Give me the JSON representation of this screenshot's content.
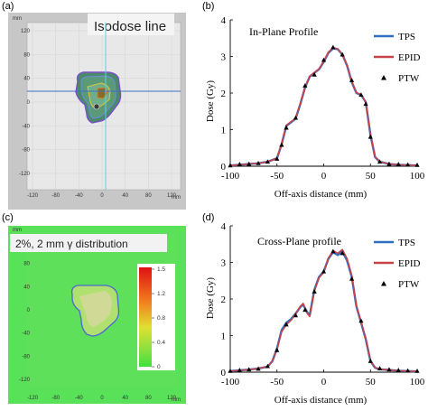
{
  "panels": {
    "a": {
      "letter": "(a)",
      "overlay_label": "Isodose line",
      "unit": "mm",
      "y_ticks": [
        "120",
        "80",
        "40",
        "0",
        "-40",
        "-80",
        "-120"
      ],
      "x_ticks": [
        "-120",
        "-80",
        "-40",
        "0",
        "40",
        "80",
        "120"
      ],
      "colors": {
        "background": "#c7c7c7",
        "plot": "#e8e8e8",
        "grid": "#cfcfcf",
        "crosshair_h": "#3e6fc0",
        "crosshair_v": "#5bd0e0"
      }
    },
    "c": {
      "letter": "(c)",
      "overlay_label": "2%, 2 mm γ distribution",
      "unit": "mm",
      "y_ticks": [
        "120",
        "80",
        "40",
        "0",
        "-40",
        "-80",
        "-120"
      ],
      "x_ticks": [
        "-120",
        "-80",
        "-40",
        "0",
        "40",
        "80",
        "120"
      ],
      "colorbar_ticks": [
        "1.5",
        "1.2",
        "0.8",
        "0.4",
        "0"
      ],
      "colors": {
        "background": "#59e159",
        "plot": "#5fe05a"
      }
    }
  },
  "chart_data": [
    {
      "panel": "b",
      "letter": "(b)",
      "type": "line",
      "title": "In-Plane Profile",
      "xlabel": "Off-axis distance (mm)",
      "ylabel": "Dose (Gy)",
      "xlim": [
        -100,
        100
      ],
      "ylim": [
        0,
        4
      ],
      "x_ticks": [
        "-100",
        "-50",
        "0",
        "50",
        "100"
      ],
      "y_ticks": [
        "0",
        "1",
        "2",
        "3",
        "4"
      ],
      "legend_position": "right",
      "series": [
        {
          "name": "TPS",
          "color": "#2e6fc1",
          "style": "line",
          "x": [
            -100,
            -90,
            -80,
            -70,
            -60,
            -50,
            -45,
            -40,
            -35,
            -30,
            -25,
            -20,
            -15,
            -10,
            -5,
            0,
            5,
            10,
            15,
            20,
            25,
            30,
            35,
            40,
            45,
            50,
            55,
            60,
            70,
            80,
            90,
            100
          ],
          "y": [
            0.02,
            0.04,
            0.06,
            0.08,
            0.12,
            0.22,
            0.6,
            1.1,
            1.2,
            1.3,
            1.7,
            2.15,
            2.45,
            2.55,
            2.65,
            2.85,
            3.1,
            3.22,
            3.2,
            3.05,
            2.75,
            2.3,
            2.0,
            1.95,
            1.75,
            0.85,
            0.25,
            0.12,
            0.06,
            0.04,
            0.03,
            0.02
          ]
        },
        {
          "name": "EPID",
          "color": "#c8424b",
          "style": "line",
          "x": [
            -100,
            -90,
            -80,
            -70,
            -60,
            -50,
            -45,
            -40,
            -35,
            -30,
            -25,
            -20,
            -15,
            -10,
            -5,
            0,
            5,
            10,
            15,
            20,
            25,
            30,
            35,
            40,
            45,
            50,
            55,
            60,
            70,
            80,
            90,
            100
          ],
          "y": [
            0.02,
            0.04,
            0.06,
            0.08,
            0.12,
            0.22,
            0.62,
            1.12,
            1.22,
            1.3,
            1.72,
            2.16,
            2.46,
            2.56,
            2.66,
            2.87,
            3.12,
            3.24,
            3.21,
            3.06,
            2.76,
            2.31,
            2.01,
            1.96,
            1.76,
            0.86,
            0.26,
            0.12,
            0.06,
            0.04,
            0.03,
            0.02
          ]
        },
        {
          "name": "PTW",
          "color": "#000000",
          "style": "markers",
          "x": [
            -100,
            -90,
            -80,
            -70,
            -60,
            -50,
            -45,
            -40,
            -30,
            -20,
            -10,
            0,
            10,
            20,
            30,
            40,
            45,
            50,
            60,
            70,
            80,
            90,
            100
          ],
          "y": [
            0.02,
            0.05,
            0.06,
            0.08,
            0.12,
            0.2,
            0.58,
            1.05,
            1.32,
            2.2,
            2.5,
            2.9,
            3.25,
            3.05,
            2.35,
            1.95,
            1.7,
            0.8,
            0.12,
            0.06,
            0.05,
            0.04,
            0.03
          ]
        }
      ]
    },
    {
      "panel": "d",
      "letter": "(d)",
      "type": "line",
      "title": "Cross-Plane profile",
      "xlabel": "Off-axis distance (mm)",
      "ylabel": "Dose (Gy)",
      "xlim": [
        -100,
        100
      ],
      "ylim": [
        0,
        4
      ],
      "x_ticks": [
        "-100",
        "-50",
        "0",
        "50",
        "100"
      ],
      "y_ticks": [
        "0",
        "1",
        "2",
        "3",
        "4"
      ],
      "legend_position": "right",
      "series": [
        {
          "name": "TPS",
          "color": "#2e6fc1",
          "style": "line",
          "x": [
            -100,
            -90,
            -80,
            -70,
            -60,
            -55,
            -50,
            -45,
            -40,
            -35,
            -30,
            -25,
            -22,
            -18,
            -15,
            -10,
            -5,
            0,
            5,
            10,
            15,
            20,
            25,
            30,
            35,
            40,
            45,
            50,
            55,
            60,
            70,
            80,
            90,
            100
          ],
          "y": [
            0.03,
            0.05,
            0.07,
            0.1,
            0.15,
            0.3,
            0.65,
            1.15,
            1.35,
            1.45,
            1.6,
            1.78,
            1.85,
            1.65,
            1.55,
            2.25,
            2.6,
            2.75,
            3.1,
            3.28,
            3.2,
            3.3,
            3.05,
            2.6,
            1.8,
            1.35,
            0.9,
            0.3,
            0.12,
            0.08,
            0.06,
            0.04,
            0.03,
            0.02
          ]
        },
        {
          "name": "EPID",
          "color": "#c8424b",
          "style": "line",
          "x": [
            -100,
            -90,
            -80,
            -70,
            -60,
            -55,
            -50,
            -45,
            -40,
            -35,
            -30,
            -25,
            -22,
            -18,
            -15,
            -10,
            -5,
            0,
            5,
            10,
            15,
            20,
            25,
            30,
            35,
            40,
            45,
            50,
            55,
            60,
            70,
            80,
            90,
            100
          ],
          "y": [
            0.03,
            0.05,
            0.07,
            0.1,
            0.15,
            0.3,
            0.62,
            1.1,
            1.3,
            1.42,
            1.6,
            1.8,
            1.88,
            1.62,
            1.52,
            2.2,
            2.58,
            2.72,
            3.12,
            3.32,
            3.25,
            3.35,
            3.1,
            2.65,
            1.82,
            1.38,
            0.92,
            0.32,
            0.12,
            0.08,
            0.06,
            0.04,
            0.03,
            0.02
          ]
        },
        {
          "name": "PTW",
          "color": "#000000",
          "style": "markers",
          "x": [
            -100,
            -90,
            -80,
            -70,
            -60,
            -50,
            -40,
            -30,
            -20,
            -10,
            0,
            10,
            20,
            30,
            40,
            50,
            60,
            70,
            80,
            90,
            100
          ],
          "y": [
            0.03,
            0.05,
            0.07,
            0.09,
            0.16,
            0.6,
            1.3,
            1.55,
            1.7,
            2.2,
            2.75,
            3.3,
            3.25,
            2.55,
            1.4,
            0.3,
            0.1,
            0.07,
            0.05,
            0.04,
            0.03
          ]
        }
      ]
    }
  ]
}
